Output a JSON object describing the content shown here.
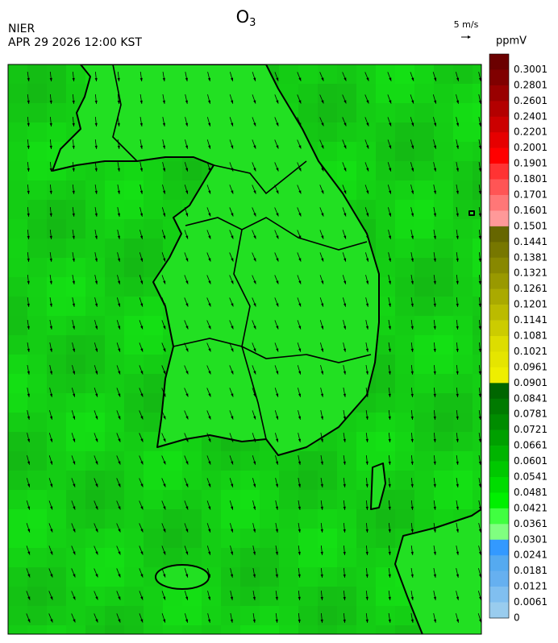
{
  "header": {
    "title": {
      "main": "O",
      "sub": "3"
    },
    "agency": "NIER",
    "datetime": "APR 29 2026 12:00 KST",
    "wind_scale": "5 m/s"
  },
  "colorbar": {
    "unit": "ppmV",
    "labels": [
      "0.3001",
      "0.2801",
      "0.2601",
      "0.2401",
      "0.2201",
      "0.2001",
      "0.1901",
      "0.1801",
      "0.1701",
      "0.1601",
      "0.1501",
      "0.1441",
      "0.1381",
      "0.1321",
      "0.1261",
      "0.1201",
      "0.1141",
      "0.1081",
      "0.1021",
      "0.0961",
      "0.0901",
      "0.0841",
      "0.0781",
      "0.0721",
      "0.0661",
      "0.0601",
      "0.0541",
      "0.0481",
      "0.0421",
      "0.0361",
      "0.0301",
      "0.0241",
      "0.0181",
      "0.0121",
      "0.0061",
      "0"
    ],
    "colors": [
      "#6b0000",
      "#800000",
      "#990000",
      "#b30000",
      "#cc0000",
      "#e60000",
      "#ff0000",
      "#ff3333",
      "#ff5555",
      "#ff7777",
      "#ff9999",
      "#666600",
      "#777700",
      "#888800",
      "#999900",
      "#aaaa00",
      "#bbbb00",
      "#cccc00",
      "#dddd00",
      "#e5e500",
      "#eeee00",
      "#006600",
      "#007a00",
      "#008c00",
      "#00a000",
      "#00b400",
      "#00c800",
      "#00dc00",
      "#00f000",
      "#40ff40",
      "#80ff80",
      "#3399ff",
      "#55aaf0",
      "#66b0f0",
      "#80bff0",
      "#99ccee"
    ]
  }
}
